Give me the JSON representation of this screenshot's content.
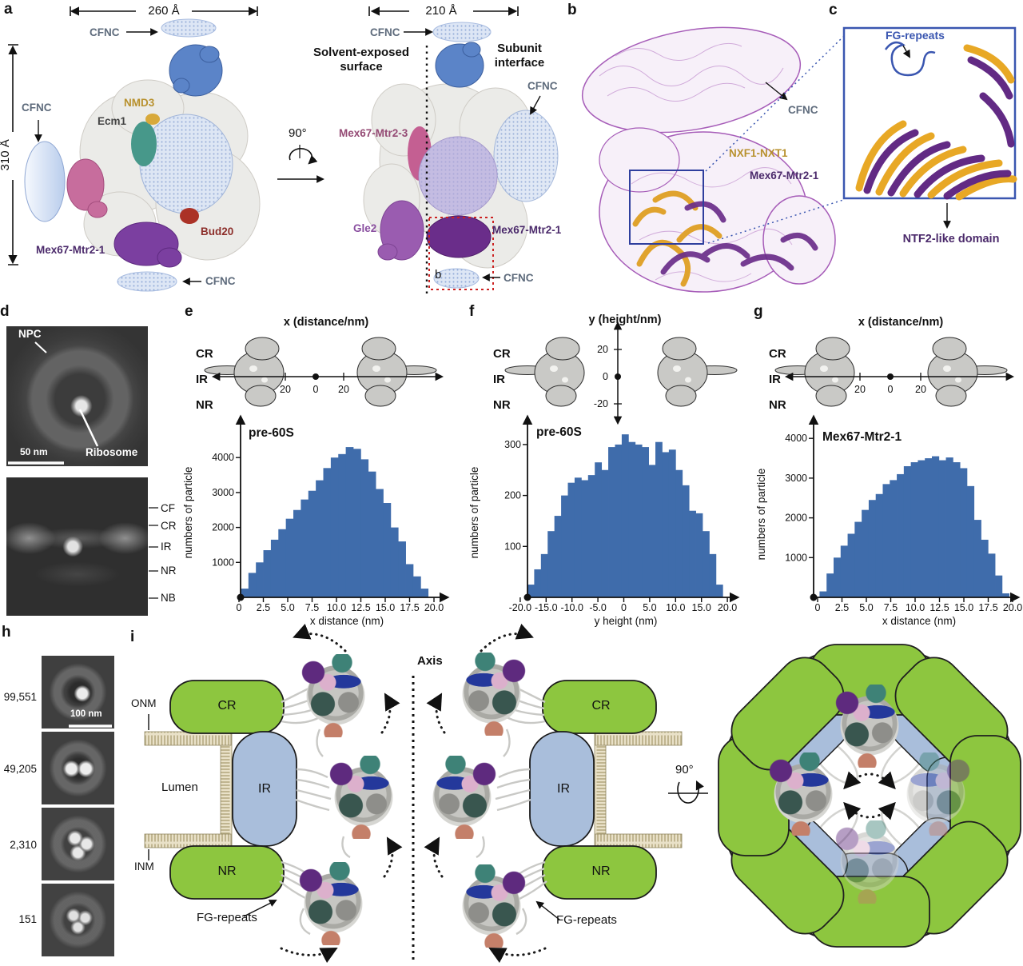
{
  "figure": {
    "panel_a": {
      "letter": "a",
      "width_left": "260 Å",
      "height_left": "310 Å",
      "width_right": "210 Å",
      "rotation": "90°",
      "cfnc_top_left": "CFNC",
      "cfnc_left": "CFNC",
      "nmd3": "NMD3",
      "ecm1": "Ecm1",
      "bud20": "Bud20",
      "mex67_left": "Mex67-Mtr2-1",
      "cfnc_bottom_left": "CFNC",
      "cfnc_top_right": "CFNC",
      "solvent": "Solvent-exposed surface",
      "subunit": "Subunit interface",
      "cfnc_right": "CFNC",
      "mex67_mtr2_3": "Mex67-Mtr2-3",
      "gle2": "Gle2",
      "mex67_right": "Mex67-Mtr2-1",
      "inset_ref": "b",
      "cfnc_bottom_right": "CFNC"
    },
    "panel_b": {
      "letter": "b",
      "cfnc": "CFNC",
      "nxf1_nxt1": "NXF1-NXT1",
      "mex67": "Mex67-Mtr2-1"
    },
    "panel_c": {
      "letter": "c",
      "fg_repeats": "FG-repeats",
      "ntf2": "NTF2-like domain"
    },
    "panel_d": {
      "letter": "d",
      "npc": "NPC",
      "ribosome": "Ribosome",
      "scale_bar": "50 nm",
      "side_labels": [
        "CF",
        "CR",
        "IR",
        "NR",
        "NB"
      ]
    },
    "panel_h": {
      "letter": "h",
      "scale_bar": "100 nm",
      "class_counts": [
        "99,551",
        "49,205",
        "2,310",
        "151"
      ]
    },
    "panel_i": {
      "letter": "i",
      "axis": "Axis",
      "onm": "ONM",
      "lumen": "Lumen",
      "inm": "INM",
      "fg_repeats_left": "FG-repeats",
      "fg_repeats_right": "FG-repeats",
      "rotation": "90°",
      "rings_left": {
        "cr": "CR",
        "ir": "IR",
        "nr": "NR"
      },
      "rings_right": {
        "cr": "CR",
        "ir": "IR",
        "nr": "NR"
      }
    }
  },
  "chart_data": [
    {
      "id": "e",
      "letter": "e",
      "type": "bar",
      "title": "pre-60S",
      "top_axis": {
        "title": "x (distance/nm)",
        "tick_labels": [
          "20",
          "0",
          "20"
        ],
        "ring_labels": [
          "CR",
          "IR",
          "NR"
        ]
      },
      "xlabel": "x distance (nm)",
      "ylabel": "numbers of particle",
      "x_ticks": {
        "labels": [
          "0",
          "2.5",
          "5.0",
          "7.5",
          "10.0",
          "12.5",
          "15.0",
          "17.5",
          "20.0"
        ],
        "values": [
          0,
          2.5,
          5,
          7.5,
          10,
          12.5,
          15,
          17.5,
          20
        ]
      },
      "y_ticks": [
        1000,
        2000,
        3000,
        4000
      ],
      "xlim": [
        0,
        21.2
      ],
      "ylim": [
        0,
        5100
      ],
      "bins": {
        "start": 0.2,
        "width": 0.768
      },
      "values": [
        250,
        700,
        1000,
        1350,
        1650,
        1950,
        2250,
        2500,
        2800,
        3050,
        3350,
        3700,
        4000,
        4100,
        4300,
        4250,
        3950,
        3600,
        3100,
        2700,
        2000,
        1600,
        950,
        600,
        250
      ]
    },
    {
      "id": "f",
      "letter": "f",
      "type": "bar",
      "title": "pre-60S",
      "top_axis": {
        "title": "y (height/nm)",
        "tick_labels": [
          "20",
          "0",
          "-20"
        ],
        "ring_labels": [
          "CR",
          "IR",
          "NR"
        ]
      },
      "xlabel": "y height (nm)",
      "ylabel": "numbers of particle",
      "x_ticks": {
        "labels": [
          "-20.0",
          "-15.0",
          "-10.0",
          "-5.0",
          "0",
          "5.0",
          "10.0",
          "15.0",
          "20.0"
        ],
        "values": [
          -20,
          -15,
          -10,
          -5,
          0,
          5,
          10,
          15,
          20
        ]
      },
      "y_ticks": [
        100,
        200,
        300
      ],
      "xlim": [
        -21.5,
        21.5
      ],
      "ylim": [
        0,
        350
      ],
      "bins": {
        "start": -18.6,
        "width": 1.3
      },
      "values": [
        25,
        55,
        85,
        130,
        160,
        200,
        225,
        235,
        230,
        240,
        265,
        250,
        295,
        300,
        320,
        305,
        300,
        295,
        260,
        305,
        285,
        290,
        250,
        220,
        170,
        165,
        130,
        85,
        25
      ]
    },
    {
      "id": "g",
      "letter": "g",
      "type": "bar",
      "title": "Mex67-Mtr2-1",
      "top_axis": {
        "title": "x (distance/nm)",
        "tick_labels": [
          "20",
          "0",
          "20"
        ],
        "ring_labels": [
          "CR",
          "IR",
          "NR"
        ]
      },
      "xlabel": "x distance (nm)",
      "ylabel": "numbers of particle",
      "x_ticks": {
        "labels": [
          "0",
          "2.5",
          "5.0",
          "7.5",
          "10.0",
          "12.5",
          "15.0",
          "17.5",
          "20.0"
        ],
        "values": [
          0,
          2.5,
          5,
          7.5,
          10,
          12.5,
          15,
          17.5,
          20
        ]
      },
      "y_ticks": [
        1000,
        2000,
        3000,
        4000
      ],
      "xlim": [
        0,
        21.2
      ],
      "ylim": [
        0,
        4500
      ],
      "bins": {
        "start": 0.2,
        "width": 0.72
      },
      "values": [
        150,
        600,
        1000,
        1300,
        1600,
        1900,
        2200,
        2450,
        2600,
        2850,
        2950,
        3100,
        3300,
        3400,
        3450,
        3500,
        3550,
        3450,
        3520,
        3400,
        3250,
        2800,
        1950,
        1450,
        1100,
        550,
        100
      ]
    }
  ],
  "colors": {
    "bar": "#3f6cab",
    "spoke_green": "#8dc63f",
    "ring_blue": "#a9bedb",
    "membrane": "#e9e1c8",
    "envelope": "#cdc5a5"
  }
}
